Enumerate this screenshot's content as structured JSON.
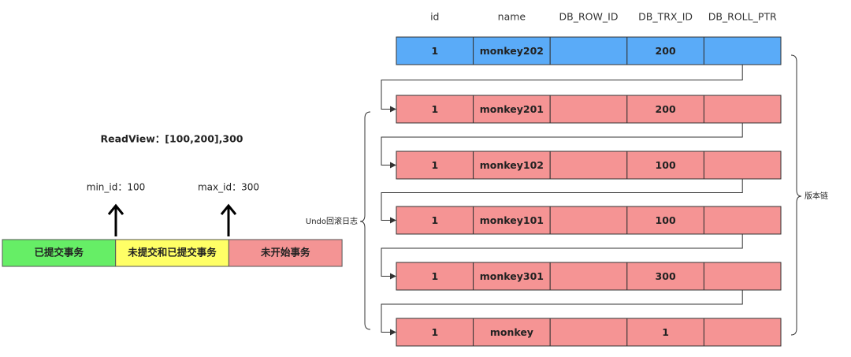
{
  "table": {
    "headers": [
      "id",
      "name",
      "DB_ROW_ID",
      "DB_TRX_ID",
      "DB_ROLL_PTR"
    ],
    "rows": [
      {
        "id": 1,
        "name": "monkey202",
        "trx_id": 200
      },
      {
        "id": 1,
        "name": "monkey201",
        "trx_id": 200
      },
      {
        "id": 1,
        "name": "monkey102",
        "trx_id": 100
      },
      {
        "id": 1,
        "name": "monkey101",
        "trx_id": 100
      },
      {
        "id": 1,
        "name": "monkey301",
        "trx_id": 300
      },
      {
        "id": 1,
        "name": "monkey",
        "trx_id": 1
      }
    ]
  },
  "undo_label": "Undo回滚日志",
  "chain_label": "版本链",
  "readview": {
    "title": "ReadView：[100,200],300",
    "min_label": "min_id：100",
    "max_label": "max_id：300",
    "segments": [
      "已提交事务",
      "未提交和已提交事务",
      "未开始事务"
    ]
  }
}
